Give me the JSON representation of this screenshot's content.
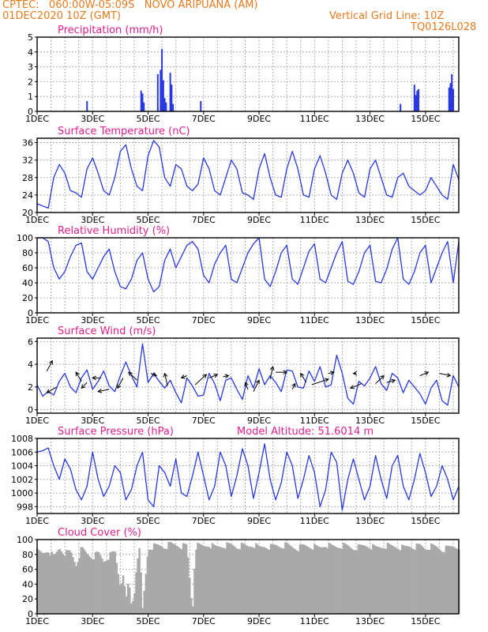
{
  "header": {
    "line1": "CPTEC:   060:00W-05:09S   NOVO ARIPUANA (AM)",
    "line2": "01DEC2020 10Z (GMT)",
    "grid_note": "Vertical Grid Line: 10Z",
    "model_code": "TQ0126L028"
  },
  "colors": {
    "header": "#e87a1e",
    "title": "#e0208a",
    "line": "#2838e0",
    "cloud": "#a9a9a9"
  },
  "x_tick_labels": [
    "1DEC",
    "3DEC",
    "5DEC",
    "7DEC",
    "9DEC",
    "11DEC",
    "13DEC",
    "15DEC"
  ],
  "chart_data": [
    {
      "id": "precip",
      "type": "bar",
      "title": "Precipitation (mm/h)",
      "x_range": [
        1,
        16.2
      ],
      "ylim": [
        0,
        5
      ],
      "yticks": [
        0,
        1,
        2,
        3,
        4,
        5
      ],
      "x": [
        2.8,
        4.75,
        4.8,
        4.85,
        5.35,
        5.45,
        5.5,
        5.55,
        5.6,
        5.65,
        5.8,
        5.85,
        5.9,
        6.9,
        14.1,
        14.6,
        14.65,
        14.7,
        14.75,
        15.85,
        15.9,
        15.95,
        16.0
      ],
      "values": [
        0.7,
        1.4,
        1.2,
        0.6,
        2.5,
        2.8,
        4.2,
        2.1,
        0.9,
        0.6,
        2.6,
        1.8,
        0.5,
        0.7,
        0.5,
        1.8,
        1.1,
        1.4,
        1.5,
        1.6,
        1.9,
        2.5,
        1.5
      ]
    },
    {
      "id": "temp",
      "type": "line",
      "title": "Surface Temperature (nC)",
      "x_range": [
        1,
        16.2
      ],
      "ylim": [
        20,
        37
      ],
      "yticks": [
        20,
        24,
        28,
        32,
        36
      ],
      "x": [
        1.0,
        1.2,
        1.4,
        1.6,
        1.8,
        2.0,
        2.2,
        2.4,
        2.6,
        2.8,
        3.0,
        3.2,
        3.4,
        3.6,
        3.8,
        4.0,
        4.2,
        4.4,
        4.6,
        4.8,
        5.0,
        5.2,
        5.4,
        5.6,
        5.8,
        6.0,
        6.2,
        6.4,
        6.6,
        6.8,
        7.0,
        7.2,
        7.4,
        7.6,
        7.8,
        8.0,
        8.2,
        8.4,
        8.6,
        8.8,
        9.0,
        9.2,
        9.4,
        9.6,
        9.8,
        10.0,
        10.2,
        10.4,
        10.6,
        10.8,
        11.0,
        11.2,
        11.4,
        11.6,
        11.8,
        12.0,
        12.2,
        12.4,
        12.6,
        12.8,
        13.0,
        13.2,
        13.4,
        13.6,
        13.8,
        14.0,
        14.2,
        14.4,
        14.6,
        14.8,
        15.0,
        15.2,
        15.4,
        15.6,
        15.8,
        16.0,
        16.2
      ],
      "values": [
        22,
        21.5,
        21,
        28,
        31,
        29,
        25,
        24.5,
        23.5,
        30,
        32.5,
        29,
        25,
        24,
        28,
        34,
        35.5,
        30,
        26,
        25,
        33,
        36.5,
        35,
        28,
        26,
        31,
        30,
        26,
        25,
        26.5,
        32.5,
        30,
        25,
        24,
        28,
        32,
        30,
        24.5,
        24,
        23,
        30,
        33.5,
        28,
        24,
        23.5,
        30,
        34,
        30,
        24,
        23.5,
        30,
        33,
        29,
        24,
        23,
        29,
        32,
        29,
        24.5,
        23.5,
        30,
        32,
        28,
        24,
        23.5,
        28,
        29,
        26,
        25,
        24,
        25,
        28,
        26,
        24,
        23,
        31,
        27.5
      ]
    },
    {
      "id": "rh",
      "type": "line",
      "title": "Relative Humidity (%)",
      "x_range": [
        1,
        16.2
      ],
      "ylim": [
        0,
        100
      ],
      "yticks": [
        0,
        20,
        40,
        60,
        80,
        100
      ],
      "x": [
        1.0,
        1.2,
        1.4,
        1.6,
        1.8,
        2.0,
        2.2,
        2.4,
        2.6,
        2.8,
        3.0,
        3.2,
        3.4,
        3.6,
        3.8,
        4.0,
        4.2,
        4.4,
        4.6,
        4.8,
        5.0,
        5.2,
        5.4,
        5.6,
        5.8,
        6.0,
        6.2,
        6.4,
        6.6,
        6.8,
        7.0,
        7.2,
        7.4,
        7.6,
        7.8,
        8.0,
        8.2,
        8.4,
        8.6,
        8.8,
        9.0,
        9.2,
        9.4,
        9.6,
        9.8,
        10.0,
        10.2,
        10.4,
        10.6,
        10.8,
        11.0,
        11.2,
        11.4,
        11.6,
        11.8,
        12.0,
        12.2,
        12.4,
        12.6,
        12.8,
        13.0,
        13.2,
        13.4,
        13.6,
        13.8,
        14.0,
        14.2,
        14.4,
        14.6,
        14.8,
        15.0,
        15.2,
        15.4,
        15.6,
        15.8,
        16.0,
        16.2
      ],
      "values": [
        100,
        100,
        95,
        60,
        45,
        55,
        75,
        90,
        93,
        55,
        45,
        60,
        75,
        85,
        55,
        35,
        32,
        45,
        70,
        80,
        45,
        28,
        35,
        70,
        85,
        60,
        75,
        90,
        95,
        85,
        50,
        40,
        65,
        80,
        90,
        45,
        40,
        60,
        80,
        92,
        100,
        45,
        35,
        55,
        80,
        90,
        45,
        38,
        60,
        82,
        92,
        45,
        40,
        60,
        80,
        95,
        42,
        38,
        55,
        80,
        90,
        42,
        40,
        58,
        85,
        100,
        45,
        38,
        55,
        80,
        90,
        40,
        60,
        80,
        95,
        40,
        95
      ]
    },
    {
      "id": "wind",
      "type": "line",
      "title": "Surface Wind (m/s)",
      "x_range": [
        1,
        16.2
      ],
      "ylim": [
        -0.3,
        6.3
      ],
      "yticks": [
        0,
        2,
        4,
        6
      ],
      "x": [
        1.0,
        1.2,
        1.4,
        1.6,
        1.8,
        2.0,
        2.2,
        2.4,
        2.6,
        2.8,
        3.0,
        3.2,
        3.4,
        3.6,
        3.8,
        4.0,
        4.2,
        4.4,
        4.6,
        4.8,
        5.0,
        5.2,
        5.4,
        5.6,
        5.8,
        6.0,
        6.2,
        6.4,
        6.6,
        6.8,
        7.0,
        7.2,
        7.4,
        7.6,
        7.8,
        8.0,
        8.2,
        8.4,
        8.6,
        8.8,
        9.0,
        9.2,
        9.4,
        9.6,
        9.8,
        10.0,
        10.2,
        10.4,
        10.6,
        10.8,
        11.0,
        11.2,
        11.4,
        11.6,
        11.8,
        12.0,
        12.2,
        12.4,
        12.6,
        12.8,
        13.0,
        13.2,
        13.4,
        13.6,
        13.8,
        14.0,
        14.2,
        14.4,
        14.6,
        14.8,
        15.0,
        15.2,
        15.4,
        15.6,
        15.8,
        16.0,
        16.2
      ],
      "values": [
        2.2,
        1.2,
        1.6,
        1.3,
        2.5,
        3.2,
        2.0,
        1.5,
        2.8,
        3.5,
        1.8,
        2.5,
        3.4,
        2.1,
        1.6,
        3.0,
        4.2,
        3.0,
        2.0,
        5.8,
        2.4,
        3.2,
        2.5,
        1.9,
        2.6,
        1.5,
        0.6,
        2.8,
        2.1,
        1.2,
        1.3,
        3.2,
        2.3,
        0.8,
        2.6,
        2.8,
        1.8,
        0.9,
        3.0,
        1.9,
        3.6,
        2.2,
        3.0,
        2.4,
        1.6,
        3.5,
        3.4,
        2.0,
        1.9,
        3.4,
        2.5,
        3.8,
        2.0,
        2.2,
        4.8,
        3.2,
        1.0,
        0.5,
        2.5,
        2.1,
        2.8,
        3.8,
        2.3,
        1.7,
        3.2,
        2.8,
        1.5,
        2.6,
        2.0,
        1.4,
        0.5,
        1.9,
        2.6,
        0.8,
        0.4,
        3.0,
        2.0
      ],
      "vector_note": "arrows at each 6h step"
    },
    {
      "id": "pressure",
      "type": "line",
      "title": "Surface Pressure (hPa)",
      "annotation": "Model Altitude: 51.6014 m",
      "x_range": [
        1,
        16.2
      ],
      "ylim": [
        997,
        1008
      ],
      "yticks": [
        998,
        1000,
        1002,
        1004,
        1006,
        1008
      ],
      "x": [
        1.0,
        1.2,
        1.4,
        1.6,
        1.8,
        2.0,
        2.2,
        2.4,
        2.6,
        2.8,
        3.0,
        3.2,
        3.4,
        3.6,
        3.8,
        4.0,
        4.2,
        4.4,
        4.6,
        4.8,
        5.0,
        5.2,
        5.4,
        5.6,
        5.8,
        6.0,
        6.2,
        6.4,
        6.6,
        6.8,
        7.0,
        7.2,
        7.4,
        7.6,
        7.8,
        8.0,
        8.2,
        8.4,
        8.6,
        8.8,
        9.0,
        9.2,
        9.4,
        9.6,
        9.8,
        10.0,
        10.2,
        10.4,
        10.6,
        10.8,
        11.0,
        11.2,
        11.4,
        11.6,
        11.8,
        12.0,
        12.2,
        12.4,
        12.6,
        12.8,
        13.0,
        13.2,
        13.4,
        13.6,
        13.8,
        14.0,
        14.2,
        14.4,
        14.6,
        14.8,
        15.0,
        15.2,
        15.4,
        15.6,
        15.8,
        16.0,
        16.2
      ],
      "values": [
        1006,
        1006.2,
        1006.6,
        1004,
        1002,
        1005,
        1003.5,
        1000.5,
        999,
        1001,
        1006,
        1002,
        999.5,
        1001,
        1004,
        1003,
        999,
        1000.5,
        1004,
        1006,
        999,
        998,
        1004,
        1003,
        1001,
        1005,
        1000,
        999.5,
        1002.5,
        1006,
        1002.5,
        999,
        1001,
        1006,
        1004,
        999.5,
        1002.5,
        1006.5,
        1004,
        999.2,
        1003,
        1007.2,
        1002,
        999,
        1001.5,
        1006,
        1004,
        999.2,
        1002,
        1005.5,
        1003,
        998,
        1000.5,
        1006,
        1004.5,
        997.5,
        1002,
        1005,
        1002,
        999,
        1001,
        1005.5,
        1002,
        999.2,
        1004,
        1005.5,
        1001,
        999,
        1002,
        1005.8,
        1003,
        999.5,
        1001,
        1004,
        1002,
        999,
        1001
      ]
    },
    {
      "id": "cloud",
      "type": "area",
      "title": "Cloud Cover (%)",
      "x_range": [
        1,
        16.2
      ],
      "ylim": [
        0,
        100
      ],
      "yticks": [
        0,
        20,
        40,
        60,
        80,
        100
      ],
      "x": [
        1.0,
        1.2,
        1.4,
        1.6,
        1.8,
        2.0,
        2.2,
        2.4,
        2.6,
        2.8,
        3.0,
        3.2,
        3.4,
        3.6,
        3.8,
        4.0,
        4.1,
        4.2,
        4.3,
        4.4,
        4.5,
        4.6,
        4.7,
        4.8,
        5.0,
        5.2,
        5.4,
        5.6,
        5.8,
        6.0,
        6.2,
        6.4,
        6.6,
        6.7,
        6.8,
        7.0,
        7.2,
        7.4,
        7.6,
        7.8,
        8.0,
        8.2,
        8.4,
        8.6,
        8.8,
        9.0,
        9.2,
        9.4,
        9.6,
        9.8,
        10.0,
        10.2,
        10.4,
        10.6,
        10.8,
        11.0,
        11.2,
        11.4,
        11.6,
        11.8,
        12.0,
        12.2,
        12.4,
        12.6,
        12.8,
        13.0,
        13.2,
        13.4,
        13.6,
        13.8,
        14.0,
        14.2,
        14.4,
        14.6,
        14.8,
        15.0,
        15.2,
        15.4,
        15.6,
        15.8,
        16.0,
        16.2
      ],
      "values": [
        88,
        85,
        90,
        80,
        93,
        85,
        88,
        70,
        92,
        85,
        80,
        86,
        75,
        82,
        88,
        40,
        60,
        20,
        50,
        15,
        30,
        80,
        90,
        10,
        92,
        95,
        96,
        94,
        98,
        97,
        95,
        96,
        5,
        94,
        96,
        95,
        97,
        94,
        95,
        96,
        97,
        94,
        96,
        95,
        97,
        93,
        95,
        94,
        96,
        95,
        97,
        94,
        92,
        96,
        95,
        94,
        93,
        97,
        95,
        94,
        96,
        95,
        92,
        94,
        96,
        95,
        93,
        94,
        96,
        95,
        94,
        93,
        95,
        94,
        96,
        92,
        95,
        94,
        90,
        93,
        95,
        94
      ]
    }
  ]
}
